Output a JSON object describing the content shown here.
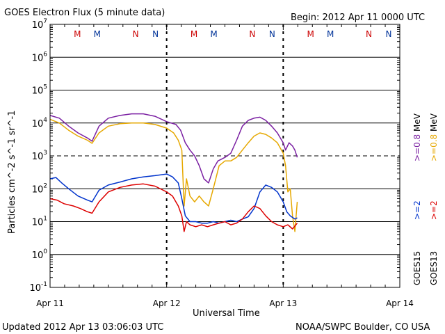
{
  "chart_data": {
    "type": "line",
    "title": "GOES Electron Flux (5 minute data)",
    "begin_label": "Begin: 2012 Apr 11 0000 UTC",
    "footer_left": "Updated 2012 Apr 13 03:06:03 UTC",
    "footer_right": "NOAA/SWPC Boulder, CO USA",
    "xlabel": "Universal Time",
    "ylabel": "Particles cm^-2 s^-1 sr^-1",
    "y_scale": "log",
    "ylim": [
      0.1,
      10000000
    ],
    "xlim_days": [
      0,
      3
    ],
    "x_tick_labels": [
      "Apr 11",
      "Apr 12",
      "Apr 13",
      "Apr 14"
    ],
    "y_tick_exponents": [
      -1,
      0,
      1,
      2,
      3,
      4,
      5,
      6,
      7
    ],
    "threshold_line": 1000,
    "right_labels": {
      "ge2_goes15": {
        "text": ">=2",
        "color": "#0033cc"
      },
      "ge2_goes13": {
        "text": ">=2",
        "color": "#dd0000"
      },
      "ge08_goes15": {
        "text": ">=0.8",
        "color": "#7a1fa2"
      },
      "ge08_goes13": {
        "text": ">=0.8",
        "color": "#e6a800"
      },
      "mev1": "MeV",
      "mev2": "MeV",
      "sat15": "GOES15",
      "sat13": "GOES13"
    },
    "markers": [
      {
        "label": "M",
        "x": 0.33,
        "color": "#cc0000"
      },
      {
        "label": "M",
        "x": 0.5,
        "color": "#003399"
      },
      {
        "label": "N",
        "x": 0.83,
        "color": "#cc0000"
      },
      {
        "label": "N",
        "x": 1.0,
        "color": "#003399"
      },
      {
        "label": "M",
        "x": 1.33,
        "color": "#cc0000"
      },
      {
        "label": "M",
        "x": 1.5,
        "color": "#003399"
      },
      {
        "label": "N",
        "x": 1.83,
        "color": "#cc0000"
      },
      {
        "label": "N",
        "x": 2.0,
        "color": "#003399"
      },
      {
        "label": "M",
        "x": 2.33,
        "color": "#cc0000"
      },
      {
        "label": "M",
        "x": 2.5,
        "color": "#003399"
      },
      {
        "label": "N",
        "x": 2.83,
        "color": "#cc0000"
      },
      {
        "label": "N",
        "x": 3.0,
        "color": "#003399"
      }
    ],
    "dashed_x": [
      1.0,
      2.0
    ],
    "series": [
      {
        "color": "#7a1fa2",
        "x": [
          0.0,
          0.08,
          0.16,
          0.24,
          0.32,
          0.36,
          0.42,
          0.5,
          0.6,
          0.7,
          0.8,
          0.9,
          1.0,
          1.08,
          1.12,
          1.16,
          1.2,
          1.24,
          1.28,
          1.32,
          1.36,
          1.4,
          1.44,
          1.5,
          1.55,
          1.6,
          1.65,
          1.7,
          1.75,
          1.8,
          1.85,
          1.9,
          1.95,
          2.0,
          2.02,
          2.05,
          2.08,
          2.1,
          2.12
        ],
        "y": [
          17000,
          14000,
          8000,
          5000,
          3500,
          2800,
          8000,
          14000,
          17000,
          19000,
          19000,
          16000,
          11000,
          9000,
          6000,
          2500,
          1500,
          1000,
          500,
          200,
          150,
          400,
          700,
          900,
          1200,
          3000,
          8000,
          12000,
          14000,
          15000,
          12000,
          8000,
          5000,
          2500,
          1500,
          2500,
          2000,
          1500,
          900
        ]
      },
      {
        "color": "#e6a800",
        "x": [
          0.0,
          0.08,
          0.16,
          0.24,
          0.32,
          0.36,
          0.42,
          0.5,
          0.6,
          0.7,
          0.8,
          0.9,
          1.0,
          1.06,
          1.1,
          1.13,
          1.15,
          1.17,
          1.2,
          1.24,
          1.28,
          1.32,
          1.36,
          1.4,
          1.45,
          1.5,
          1.55,
          1.6,
          1.65,
          1.7,
          1.75,
          1.8,
          1.85,
          1.9,
          1.95,
          2.0,
          2.02,
          2.04,
          2.06,
          2.08,
          2.1,
          2.12
        ],
        "y": [
          13000,
          10000,
          6000,
          4000,
          3000,
          2400,
          5000,
          8000,
          9500,
          10000,
          10000,
          9000,
          7000,
          5000,
          3000,
          1500,
          30,
          200,
          60,
          40,
          60,
          40,
          30,
          100,
          500,
          700,
          700,
          900,
          1500,
          2500,
          4000,
          5000,
          4500,
          3500,
          2500,
          1200,
          500,
          80,
          100,
          15,
          5,
          40
        ]
      },
      {
        "color": "#0033cc",
        "x": [
          0.0,
          0.05,
          0.1,
          0.16,
          0.24,
          0.32,
          0.36,
          0.42,
          0.5,
          0.6,
          0.7,
          0.8,
          0.9,
          1.0,
          1.05,
          1.1,
          1.13,
          1.16,
          1.2,
          1.25,
          1.3,
          1.35,
          1.4,
          1.45,
          1.5,
          1.55,
          1.6,
          1.65,
          1.7,
          1.75,
          1.8,
          1.85,
          1.9,
          1.95,
          2.0,
          2.03,
          2.06,
          2.1,
          2.12
        ],
        "y": [
          200,
          220,
          150,
          100,
          60,
          45,
          40,
          90,
          130,
          160,
          200,
          230,
          250,
          280,
          230,
          150,
          50,
          15,
          10,
          10,
          9,
          9,
          10,
          9,
          10,
          11,
          10,
          12,
          14,
          25,
          80,
          130,
          110,
          80,
          40,
          20,
          15,
          12,
          13
        ]
      },
      {
        "color": "#dd0000",
        "x": [
          0.0,
          0.06,
          0.12,
          0.2,
          0.26,
          0.32,
          0.36,
          0.42,
          0.5,
          0.6,
          0.7,
          0.8,
          0.9,
          1.0,
          1.05,
          1.1,
          1.13,
          1.15,
          1.17,
          1.2,
          1.25,
          1.3,
          1.35,
          1.4,
          1.45,
          1.5,
          1.55,
          1.6,
          1.65,
          1.7,
          1.75,
          1.8,
          1.85,
          1.9,
          1.95,
          2.0,
          2.04,
          2.08,
          2.12
        ],
        "y": [
          50,
          45,
          35,
          30,
          25,
          20,
          18,
          40,
          80,
          110,
          130,
          140,
          120,
          80,
          60,
          30,
          15,
          5,
          10,
          8,
          7,
          8,
          7,
          8,
          9,
          10,
          8,
          9,
          12,
          20,
          30,
          25,
          15,
          10,
          8,
          7,
          8,
          6,
          9
        ]
      }
    ]
  }
}
